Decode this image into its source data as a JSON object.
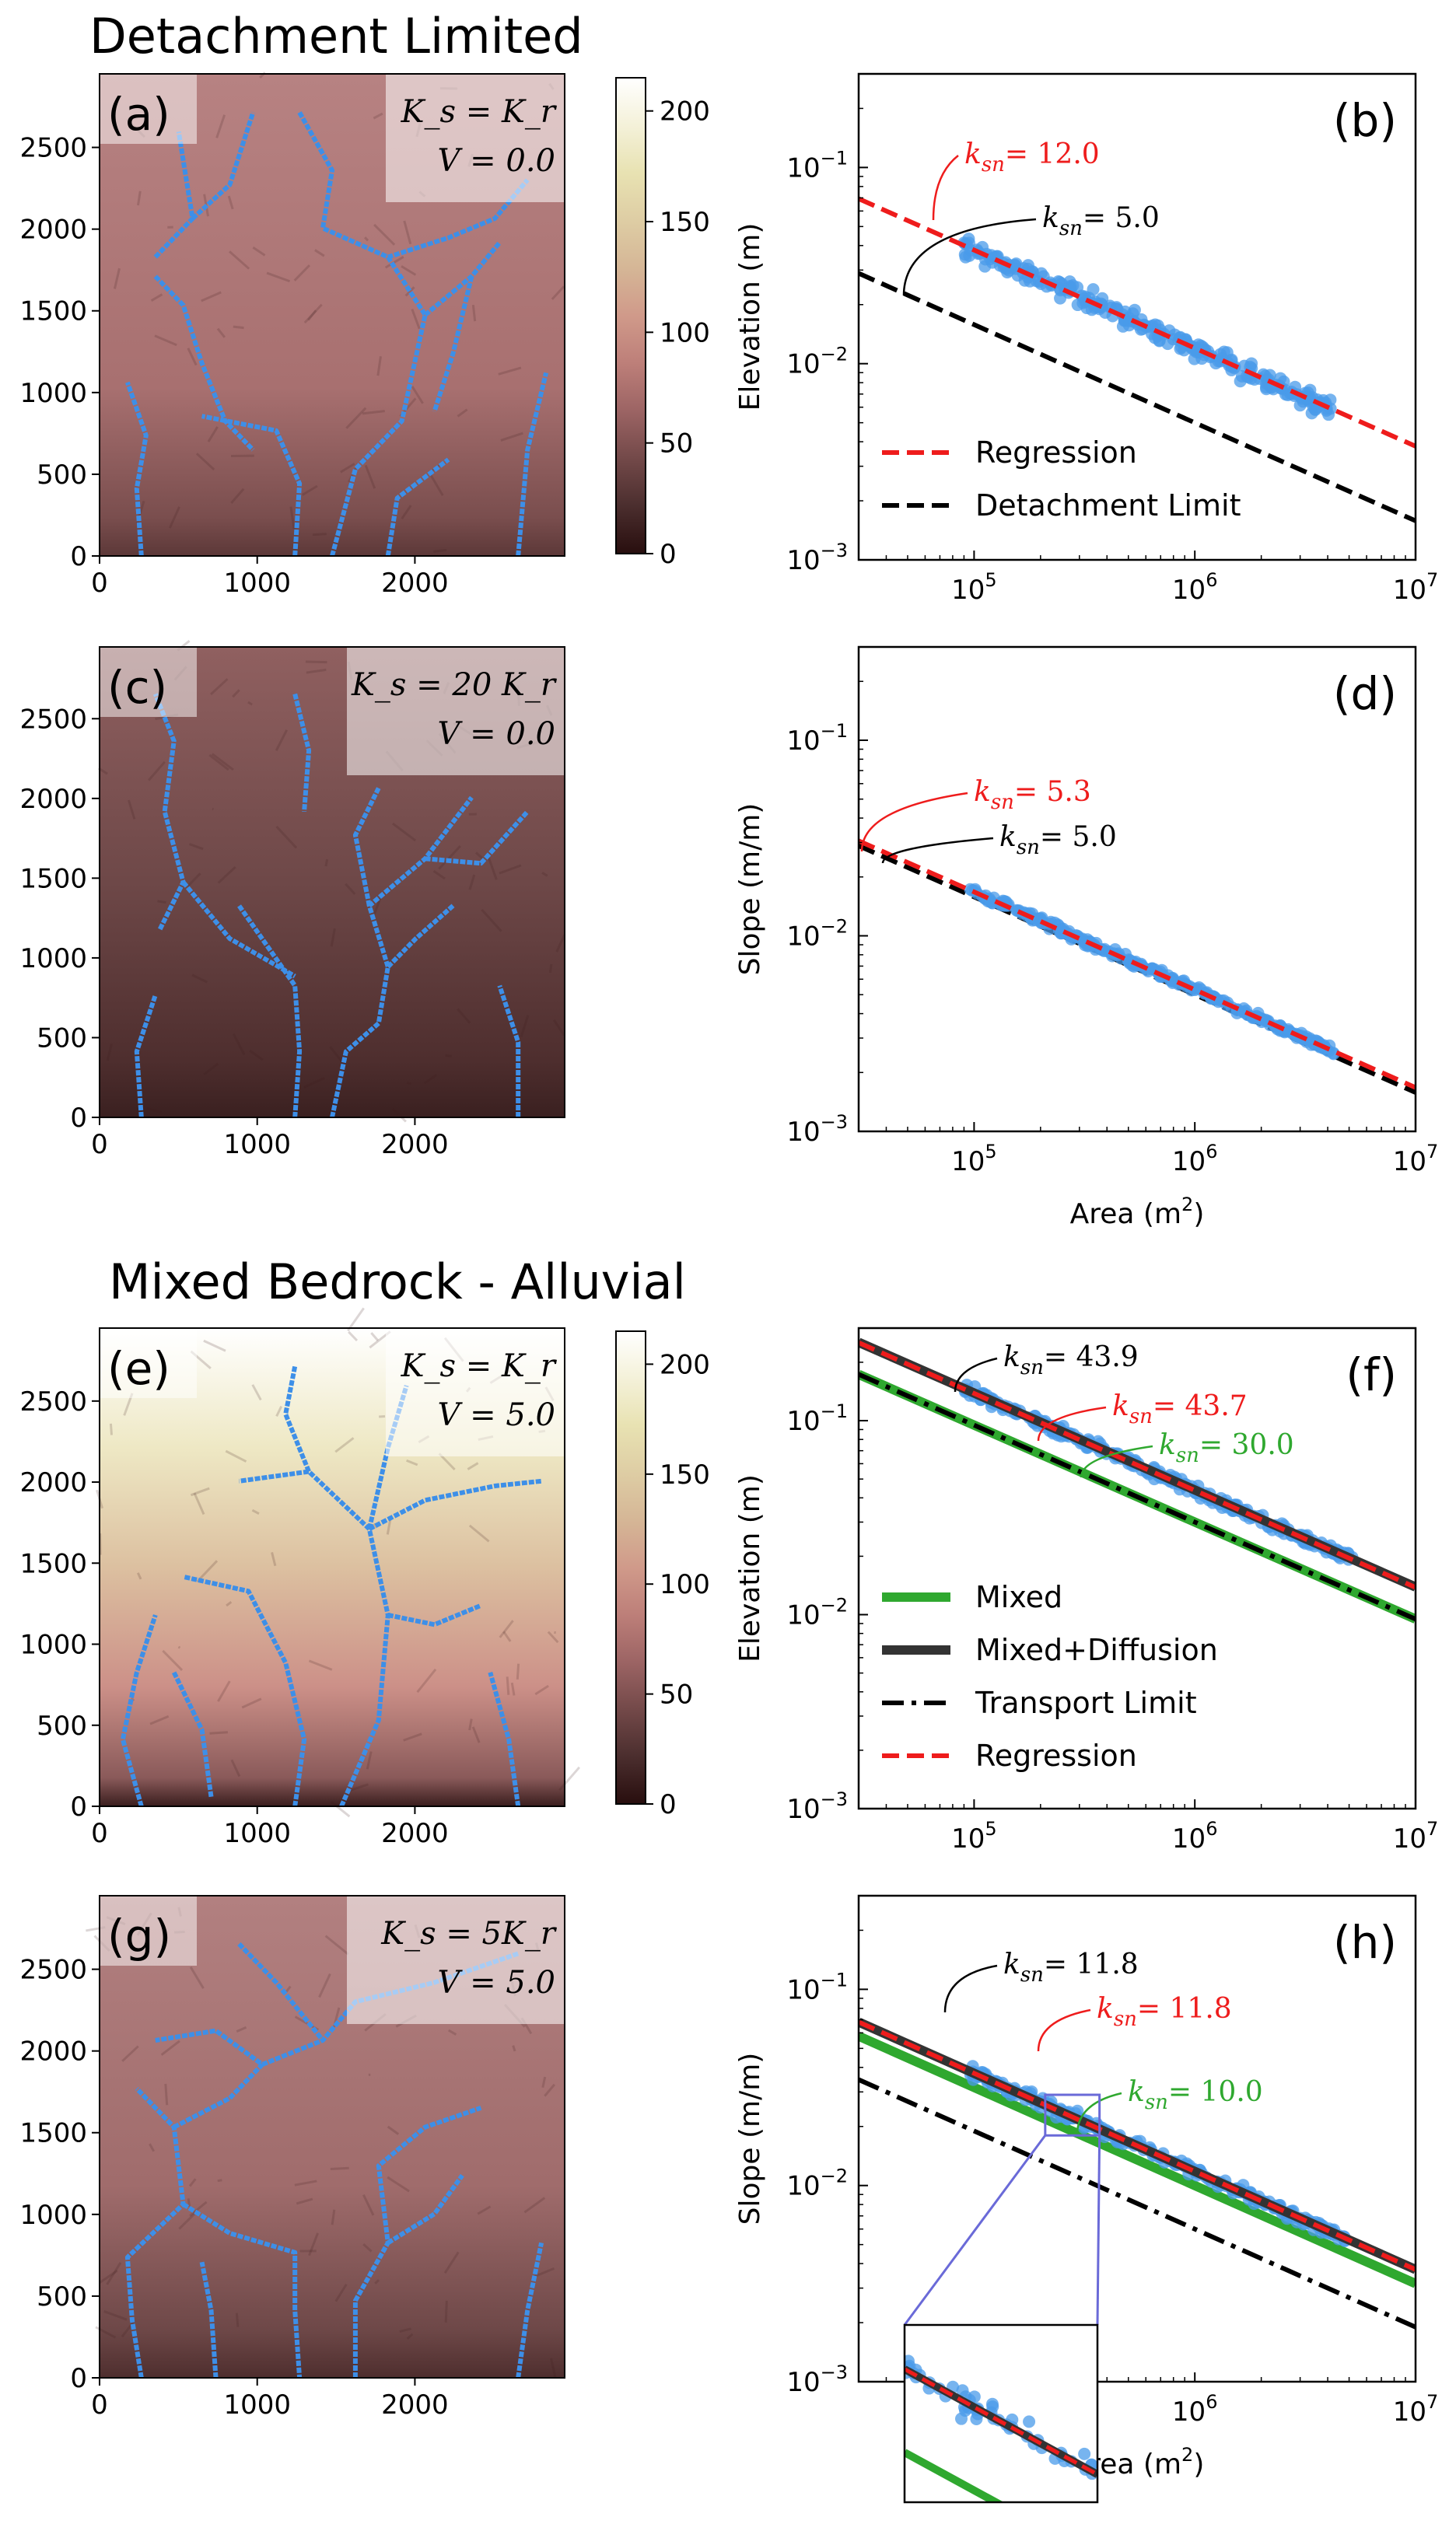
{
  "sections": [
    "Detachment Limited",
    "Mixed Bedrock - Alluvial"
  ],
  "colorbar": {
    "ticks": [
      0,
      50,
      100,
      150,
      200
    ],
    "max": 215
  },
  "colors": {
    "stream": "#3d8fe8",
    "scatter": "#4a9bea",
    "regression": "#ee1c1c",
    "mixed": "#2fa82f",
    "black": "#000000"
  },
  "maps": [
    {
      "label": "(a)",
      "eq1": "K_s = K_r",
      "eq2": "V = 0.0",
      "shading": "detach_a",
      "xticks": [
        0,
        1000,
        2000
      ],
      "yticks": [
        0,
        500,
        1000,
        1500,
        2000,
        2500
      ],
      "extent": [
        0,
        2950,
        0,
        2950
      ]
    },
    {
      "label": "(c)",
      "eq1": "K_s = 20 K_r",
      "eq2": "V = 0.0",
      "shading": "detach_c",
      "xticks": [
        0,
        1000,
        2000
      ],
      "yticks": [
        0,
        500,
        1000,
        1500,
        2000,
        2500
      ],
      "extent": [
        0,
        2950,
        0,
        2950
      ]
    },
    {
      "label": "(e)",
      "eq1": "K_s = K_r",
      "eq2": "V = 5.0",
      "shading": "mixed_e",
      "xticks": [
        0,
        1000,
        2000
      ],
      "yticks": [
        0,
        500,
        1000,
        1500,
        2000,
        2500
      ],
      "extent": [
        0,
        2950,
        0,
        2950
      ]
    },
    {
      "label": "(g)",
      "eq1": "K_s = 5K_r",
      "eq2": "V = 5.0",
      "shading": "mixed_g",
      "xticks": [
        0,
        1000,
        2000
      ],
      "yticks": [
        0,
        500,
        1000,
        1500,
        2000,
        2500
      ],
      "extent": [
        0,
        2950,
        0,
        2950
      ]
    }
  ],
  "chart_data": [
    {
      "type": "scatter",
      "label": "(b)",
      "xlabel": "",
      "ylabel": "Elevation (m)",
      "xscale": "log",
      "yscale": "log",
      "xlim": [
        30000,
        10000000
      ],
      "ylim": [
        0.001,
        0.3
      ],
      "xticks": [
        "10^5",
        "10^6",
        "10^7"
      ],
      "yticks": [
        "10^-3",
        "10^-2",
        "10^-1"
      ],
      "lines": [
        {
          "name": "Regression",
          "style": "dashed",
          "color": "#ee1c1c",
          "ksn": 12.0,
          "theta": 0.5
        },
        {
          "name": "Detachment Limit",
          "style": "dashed",
          "color": "#000000",
          "ksn": 5.0,
          "theta": 0.5
        }
      ],
      "scatter": {
        "color": "#4a9bea",
        "area_range": [
          90000,
          4200000
        ],
        "ksn": 12.0,
        "spread": 0.09
      },
      "annotations": [
        {
          "text": "k_sn= 12.0",
          "color": "#ee1c1c"
        },
        {
          "text": "k_sn= 5.0",
          "color": "#000000"
        }
      ],
      "legend": {
        "position": "lower-left",
        "entries": [
          "Regression",
          "Detachment Limit"
        ]
      }
    },
    {
      "type": "scatter",
      "label": "(d)",
      "xlabel": "Area (m^2)",
      "ylabel": "Slope (m/m)",
      "xscale": "log",
      "yscale": "log",
      "xlim": [
        30000,
        10000000
      ],
      "ylim": [
        0.001,
        0.3
      ],
      "xticks": [
        "10^5",
        "10^6",
        "10^7"
      ],
      "yticks": [
        "10^-3",
        "10^-2",
        "10^-1"
      ],
      "lines": [
        {
          "name": "Regression",
          "style": "dashed",
          "color": "#ee1c1c",
          "ksn": 5.3,
          "theta": 0.5
        },
        {
          "name": "Detachment Limit",
          "style": "dashed",
          "color": "#000000",
          "ksn": 5.0,
          "theta": 0.5
        }
      ],
      "scatter": {
        "color": "#4a9bea",
        "area_range": [
          95000,
          4300000
        ],
        "ksn": 5.3,
        "spread": 0.035
      },
      "annotations": [
        {
          "text": "k_sn= 5.3",
          "color": "#ee1c1c"
        },
        {
          "text": "k_sn= 5.0",
          "color": "#000000"
        }
      ]
    },
    {
      "type": "scatter",
      "label": "(f)",
      "xlabel": "",
      "ylabel": "Elevation (m)",
      "xscale": "log",
      "yscale": "log",
      "xlim": [
        30000,
        10000000
      ],
      "ylim": [
        0.001,
        0.3
      ],
      "xticks": [
        "10^5",
        "10^6",
        "10^7"
      ],
      "yticks": [
        "10^-3",
        "10^-2",
        "10^-1"
      ],
      "lines": [
        {
          "name": "Mixed",
          "style": "solid-thick",
          "color": "#2fa82f",
          "ksn": 30.0,
          "theta": 0.5
        },
        {
          "name": "Transport Limit",
          "style": "dashdot",
          "color": "#000000",
          "ksn": 30.0,
          "theta": 0.5
        },
        {
          "name": "Mixed+Diffusion",
          "style": "solid-thick",
          "color": "#333333",
          "ksn": 43.9,
          "theta": 0.5
        },
        {
          "name": "Regression",
          "style": "dashed",
          "color": "#ee1c1c",
          "ksn": 43.7,
          "theta": 0.5
        }
      ],
      "scatter": {
        "color": "#4a9bea",
        "area_range": [
          90000,
          5200000
        ],
        "ksn": 43.8,
        "spread": 0.05
      },
      "annotations": [
        {
          "text": "k_sn= 43.9",
          "color": "#000000"
        },
        {
          "text": "k_sn= 43.7",
          "color": "#ee1c1c"
        },
        {
          "text": "k_sn= 30.0",
          "color": "#2fa82f"
        }
      ],
      "legend": {
        "position": "lower-left",
        "entries": [
          "Mixed",
          "Mixed+Diffusion",
          "Transport Limit",
          "Regression"
        ]
      }
    },
    {
      "type": "scatter",
      "label": "(h)",
      "xlabel": "Area (m^2)",
      "ylabel": "Slope (m/m)",
      "xscale": "log",
      "yscale": "log",
      "xlim": [
        30000,
        10000000
      ],
      "ylim": [
        0.001,
        0.3
      ],
      "xticks": [
        "10^5",
        "10^6",
        "10^7"
      ],
      "yticks": [
        "10^-3",
        "10^-2",
        "10^-1"
      ],
      "lines": [
        {
          "name": "Mixed",
          "style": "solid-thick",
          "color": "#2fa82f",
          "ksn": 10.0,
          "theta": 0.5
        },
        {
          "name": "Transport Limit",
          "style": "dashdot",
          "color": "#000000",
          "ksn": 6.0,
          "theta": 0.5
        },
        {
          "name": "Mixed+Diffusion",
          "style": "solid-thick",
          "color": "#333333",
          "ksn": 11.8,
          "theta": 0.5
        },
        {
          "name": "Regression",
          "style": "dashed",
          "color": "#ee1c1c",
          "ksn": 11.8,
          "theta": 0.5
        }
      ],
      "scatter": {
        "color": "#4a9bea",
        "area_range": [
          95000,
          4800000
        ],
        "ksn": 11.8,
        "spread": 0.05
      },
      "annotations": [
        {
          "text": "k_sn= 11.8",
          "color": "#000000"
        },
        {
          "text": "k_sn= 11.8",
          "color": "#ee1c1c"
        },
        {
          "text": "k_sn= 10.0",
          "color": "#2fa82f"
        }
      ],
      "inset": {
        "area_range": [
          210000,
          370000
        ],
        "slope_range": [
          0.018,
          0.029
        ]
      }
    }
  ]
}
